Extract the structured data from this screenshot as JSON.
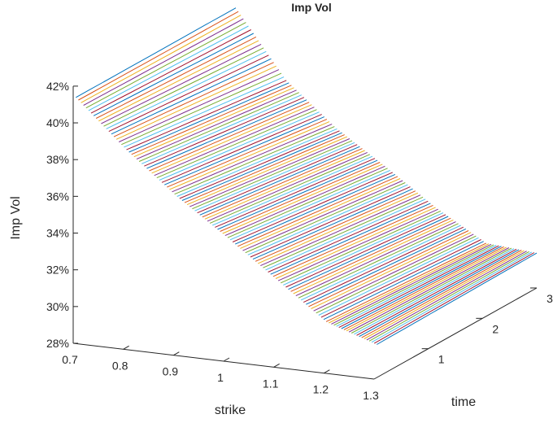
{
  "chart_data": {
    "type": "surface",
    "title": "Imp Vol",
    "xlabel": "strike",
    "ylabel": "time",
    "zlabel": "Imp Vol",
    "x_ticks": [
      "0.7",
      "0.8",
      "0.9",
      "1",
      "1.1",
      "1.2",
      "1.3"
    ],
    "y_ticks": [
      "1",
      "2",
      "3"
    ],
    "z_ticks": [
      "28%",
      "30%",
      "32%",
      "34%",
      "36%",
      "38%",
      "40%",
      "42%"
    ],
    "x_range": [
      0.7,
      1.3
    ],
    "y_range": [
      0,
      3
    ],
    "z_range": [
      0.28,
      0.42
    ],
    "surface": {
      "strike": [
        0.7,
        0.8,
        0.9,
        1.0,
        1.1,
        1.2,
        1.3
      ],
      "time": [
        0.05,
        3.0
      ],
      "imp_vol": [
        [
          0.413,
          0.413
        ],
        [
          0.388,
          0.377
        ],
        [
          0.366,
          0.354
        ],
        [
          0.347,
          0.336
        ],
        [
          0.327,
          0.317
        ],
        [
          0.307,
          0.301
        ],
        [
          0.298,
          0.299
        ]
      ]
    },
    "line_colors": [
      "#0072bd",
      "#d95319",
      "#edb120",
      "#7e2f8e",
      "#77ac30",
      "#4dbeee",
      "#a2142f"
    ],
    "grid": false
  }
}
